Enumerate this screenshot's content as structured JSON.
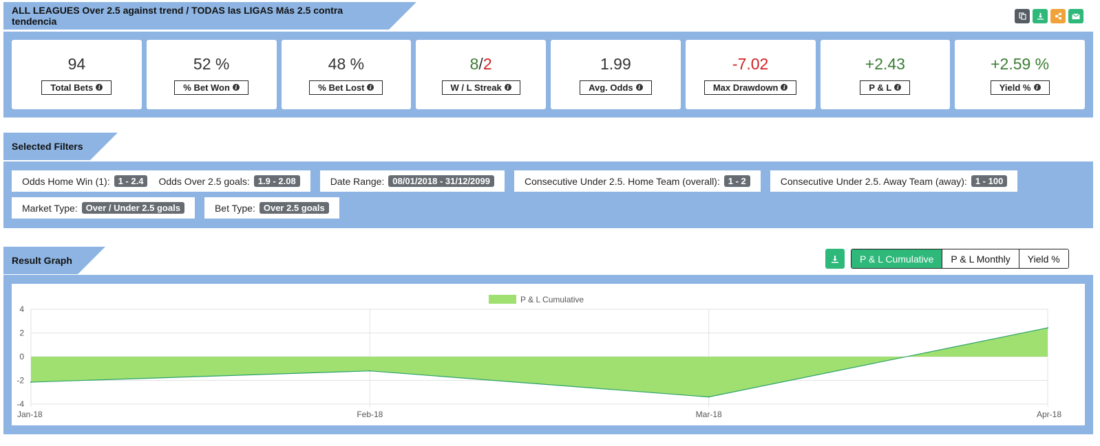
{
  "header": {
    "title": "ALL LEAGUES Over 2.5 against trend / TODAS las LIGAS Más 2.5 contra tendencia",
    "actions": [
      {
        "icon": "copy-icon",
        "color": "#555c63"
      },
      {
        "icon": "download-icon",
        "color": "#2eb87a"
      },
      {
        "icon": "share-icon",
        "color": "#f0a23b"
      },
      {
        "icon": "envelope-icon",
        "color": "#2eb87a"
      }
    ]
  },
  "stats": [
    {
      "value": "94",
      "label": "Total Bets"
    },
    {
      "value": "52 %",
      "label": "% Bet Won"
    },
    {
      "value": "48 %",
      "label": "% Bet Lost"
    },
    {
      "value_win": "8",
      "sep": "/",
      "value_loss": "2",
      "label": "W / L Streak"
    },
    {
      "value": "1.99",
      "label": "Avg. Odds"
    },
    {
      "value": "-7.02",
      "label": "Max Drawdown"
    },
    {
      "value": "+2.43",
      "label": "P & L"
    },
    {
      "value": "+2.59 %",
      "label": "Yield %"
    }
  ],
  "filters": {
    "title": "Selected Filters",
    "odds_home_label": "Odds Home Win (1):",
    "odds_home_value": "1 - 2.4",
    "odds_over_label": "Odds Over 2.5 goals:",
    "odds_over_value": "1.9 - 2.08",
    "date_label": "Date Range:",
    "date_value": "08/01/2018 - 31/12/2099",
    "cons_home_label": "Consecutive Under 2.5. Home Team (overall):",
    "cons_home_value": "1 - 2",
    "cons_away_label": "Consecutive Under 2.5. Away Team (away):",
    "cons_away_value": "1 - 100",
    "market_label": "Market Type:",
    "market_value": "Over / Under 2.5 goals",
    "bettype_label": "Bet Type:",
    "bettype_value": "Over 2.5 goals"
  },
  "graph": {
    "title": "Result Graph",
    "buttons": [
      "P & L Cumulative",
      "P & L Monthly",
      "Yield %"
    ],
    "active": 0
  },
  "chart_data": {
    "type": "area",
    "x": [
      "Jan-18",
      "Feb-18",
      "Mar-18",
      "Apr-18"
    ],
    "series": [
      {
        "name": "P & L Cumulative",
        "values": [
          -2.15,
          -1.2,
          -3.4,
          2.43
        ],
        "color": "#a0e070",
        "line": "#2aa06a"
      }
    ],
    "yticks": [
      4,
      2,
      0,
      -2,
      -4
    ],
    "ylim": [
      -4,
      4
    ],
    "legend": "top-center",
    "grid": true
  }
}
